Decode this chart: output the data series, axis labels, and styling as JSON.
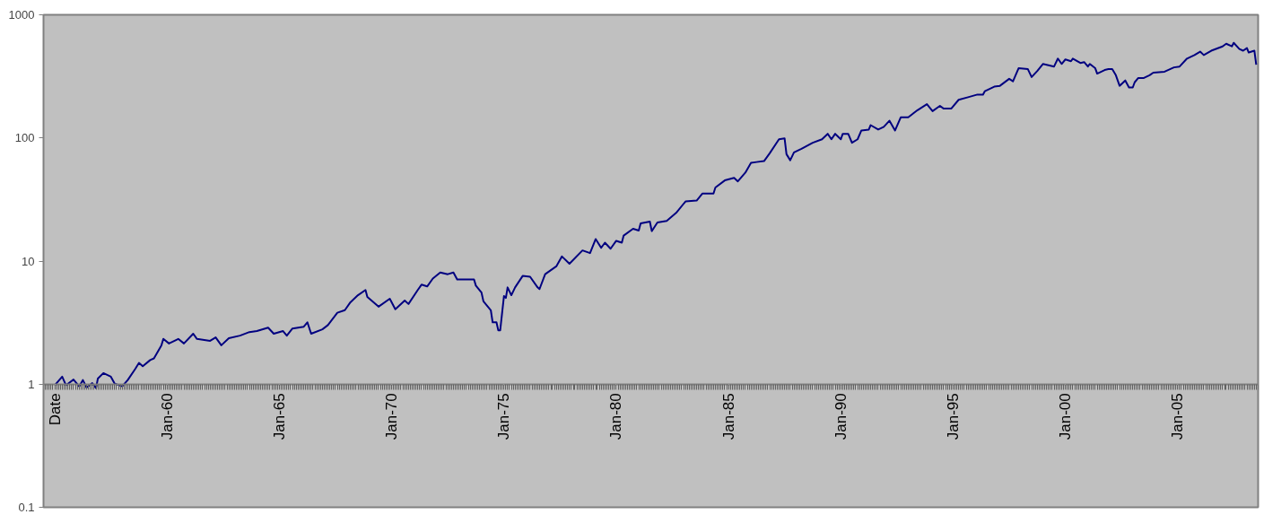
{
  "chart_data": {
    "type": "line",
    "log": "y",
    "grid": false,
    "marker": "none",
    "line_style": "solid",
    "xlim": [
      "1954-07",
      "2008-08"
    ],
    "ylim": [
      0.1,
      1000
    ],
    "yticks": [
      0.1,
      1,
      10,
      100,
      1000
    ],
    "xticks": [
      {
        "value": "1955-01",
        "label": "Date"
      },
      {
        "value": "1960-01",
        "label": "Jan-60"
      },
      {
        "value": "1965-01",
        "label": "Jan-65"
      },
      {
        "value": "1970-01",
        "label": "Jan-70"
      },
      {
        "value": "1975-01",
        "label": "Jan-75"
      },
      {
        "value": "1980-01",
        "label": "Jan-80"
      },
      {
        "value": "1985-01",
        "label": "Jan-85"
      },
      {
        "value": "1990-01",
        "label": "Jan-90"
      },
      {
        "value": "1995-01",
        "label": "Jan-95"
      },
      {
        "value": "2000-01",
        "label": "Jan-00"
      },
      {
        "value": "2005-01",
        "label": "Jan-05"
      }
    ],
    "series": [
      {
        "color": "#000080",
        "x": [
          "1955-01",
          "1955-05",
          "1955-07",
          "1955-11",
          "1956-02",
          "1956-04",
          "1956-06",
          "1956-09",
          "1956-11",
          "1956-12",
          "1957-03",
          "1957-07",
          "1957-09",
          "1958-01",
          "1958-04",
          "1958-08",
          "1958-10",
          "1958-12",
          "1959-04",
          "1959-06",
          "1959-10",
          "1959-11",
          "1960-02",
          "1960-07",
          "1960-10",
          "1961-03",
          "1961-05",
          "1961-12",
          "1962-03",
          "1962-06",
          "1962-10",
          "1963-04",
          "1963-09",
          "1964-01",
          "1964-07",
          "1964-10",
          "1965-03",
          "1965-05",
          "1965-08",
          "1966-02",
          "1966-04",
          "1966-06",
          "1966-12",
          "1967-03",
          "1967-08",
          "1967-12",
          "1968-03",
          "1968-07",
          "1968-11",
          "1968-12",
          "1969-06",
          "1969-12",
          "1970-03",
          "1970-08",
          "1970-10",
          "1971-03",
          "1971-05",
          "1971-08",
          "1971-11",
          "1972-03",
          "1972-07",
          "1972-10",
          "1972-12",
          "1973-05",
          "1973-09",
          "1973-10",
          "1974-01",
          "1974-02",
          "1974-06",
          "1974-07",
          "1974-09",
          "1974-10",
          "1974-11",
          "1975-01",
          "1975-02",
          "1975-03",
          "1975-05",
          "1975-07",
          "1975-11",
          "1976-03",
          "1976-07",
          "1976-08",
          "1976-11",
          "1977-05",
          "1977-08",
          "1977-12",
          "1978-07",
          "1978-11",
          "1979-02",
          "1979-05",
          "1979-07",
          "1979-10",
          "1980-01",
          "1980-04",
          "1980-05",
          "1980-10",
          "1981-01",
          "1981-02",
          "1981-07",
          "1981-08",
          "1981-11",
          "1982-04",
          "1982-09",
          "1983-02",
          "1983-08",
          "1983-11",
          "1984-05",
          "1984-06",
          "1984-11",
          "1985-04",
          "1985-06",
          "1985-10",
          "1986-01",
          "1986-04",
          "1986-08",
          "1986-11",
          "1987-04",
          "1987-07",
          "1987-08",
          "1987-10",
          "1987-12",
          "1988-04",
          "1988-10",
          "1989-03",
          "1989-06",
          "1989-08",
          "1989-10",
          "1990-01",
          "1990-02",
          "1990-05",
          "1990-07",
          "1990-10",
          "1990-12",
          "1991-04",
          "1991-05",
          "1991-09",
          "1991-12",
          "1992-03",
          "1992-06",
          "1992-09",
          "1993-01",
          "1993-06",
          "1993-11",
          "1994-02",
          "1994-06",
          "1994-08",
          "1994-12",
          "1995-04",
          "1995-09",
          "1996-02",
          "1996-05",
          "1996-06",
          "1996-11",
          "1997-02",
          "1997-07",
          "1997-09",
          "1997-12",
          "1998-05",
          "1998-07",
          "1998-10",
          "1999-01",
          "1999-07",
          "1999-09",
          "1999-11",
          "2000-01",
          "2000-04",
          "2000-05",
          "2000-09",
          "2000-11",
          "2001-01",
          "2001-02",
          "2001-05",
          "2001-06",
          "2001-10",
          "2001-12",
          "2002-02",
          "2002-04",
          "2002-06",
          "2002-09",
          "2002-11",
          "2003-01",
          "2003-02",
          "2003-04",
          "2003-07",
          "2003-10",
          "2003-12",
          "2004-06",
          "2004-11",
          "2005-02",
          "2005-06",
          "2005-10",
          "2006-01",
          "2006-03",
          "2006-07",
          "2007-01",
          "2007-03",
          "2007-06",
          "2007-07",
          "2007-10",
          "2007-12",
          "2008-02",
          "2008-03",
          "2008-06",
          "2008-07"
        ],
        "values": [
          0.98,
          1.15,
          0.98,
          1.09,
          0.96,
          1.08,
          0.94,
          1.02,
          0.93,
          1.11,
          1.23,
          1.15,
          1.01,
          0.96,
          1.08,
          1.33,
          1.49,
          1.4,
          1.57,
          1.62,
          2.07,
          2.33,
          2.14,
          2.33,
          2.14,
          2.57,
          2.33,
          2.25,
          2.4,
          2.07,
          2.36,
          2.48,
          2.65,
          2.7,
          2.88,
          2.57,
          2.7,
          2.48,
          2.83,
          2.93,
          3.18,
          2.57,
          2.79,
          3.02,
          3.8,
          3.99,
          4.63,
          5.28,
          5.82,
          5.11,
          4.26,
          4.94,
          4.06,
          4.78,
          4.48,
          5.82,
          6.43,
          6.22,
          7.21,
          8.08,
          7.82,
          8.08,
          7.09,
          7.09,
          7.09,
          6.32,
          5.54,
          4.71,
          3.99,
          3.18,
          3.18,
          2.74,
          2.74,
          5.19,
          5.02,
          6.11,
          5.28,
          6.11,
          7.57,
          7.45,
          6.11,
          5.92,
          7.82,
          9.06,
          10.9,
          9.52,
          12.2,
          11.6,
          15.1,
          12.8,
          14.1,
          12.6,
          14.6,
          14.1,
          16.1,
          18.3,
          17.7,
          20.2,
          20.9,
          17.5,
          20.6,
          21.2,
          24.6,
          30.5,
          31.0,
          35.3,
          35.3,
          39.6,
          45.2,
          47.4,
          44.4,
          52.3,
          62.7,
          63.7,
          64.8,
          75.0,
          97.5,
          99.2,
          73.8,
          65.9,
          76.3,
          81.5,
          91.4,
          97.5,
          108,
          97.5,
          108,
          97.5,
          108,
          108,
          91.4,
          97.5,
          115,
          117,
          127,
          117,
          123,
          138,
          115,
          147,
          147,
          168,
          188,
          165,
          182,
          173,
          173,
          204,
          214,
          225,
          225,
          240,
          261,
          265,
          302,
          288,
          368,
          362,
          312,
          350,
          399,
          380,
          441,
          399,
          434,
          420,
          441,
          406,
          413,
          380,
          399,
          368,
          333,
          356,
          362,
          362,
          323,
          265,
          293,
          257,
          257,
          283,
          307,
          307,
          323,
          339,
          345,
          374,
          380,
          441,
          471,
          502,
          471,
          511,
          554,
          582,
          554,
          592,
          528,
          511,
          537,
          494,
          511,
          393
        ]
      }
    ]
  }
}
